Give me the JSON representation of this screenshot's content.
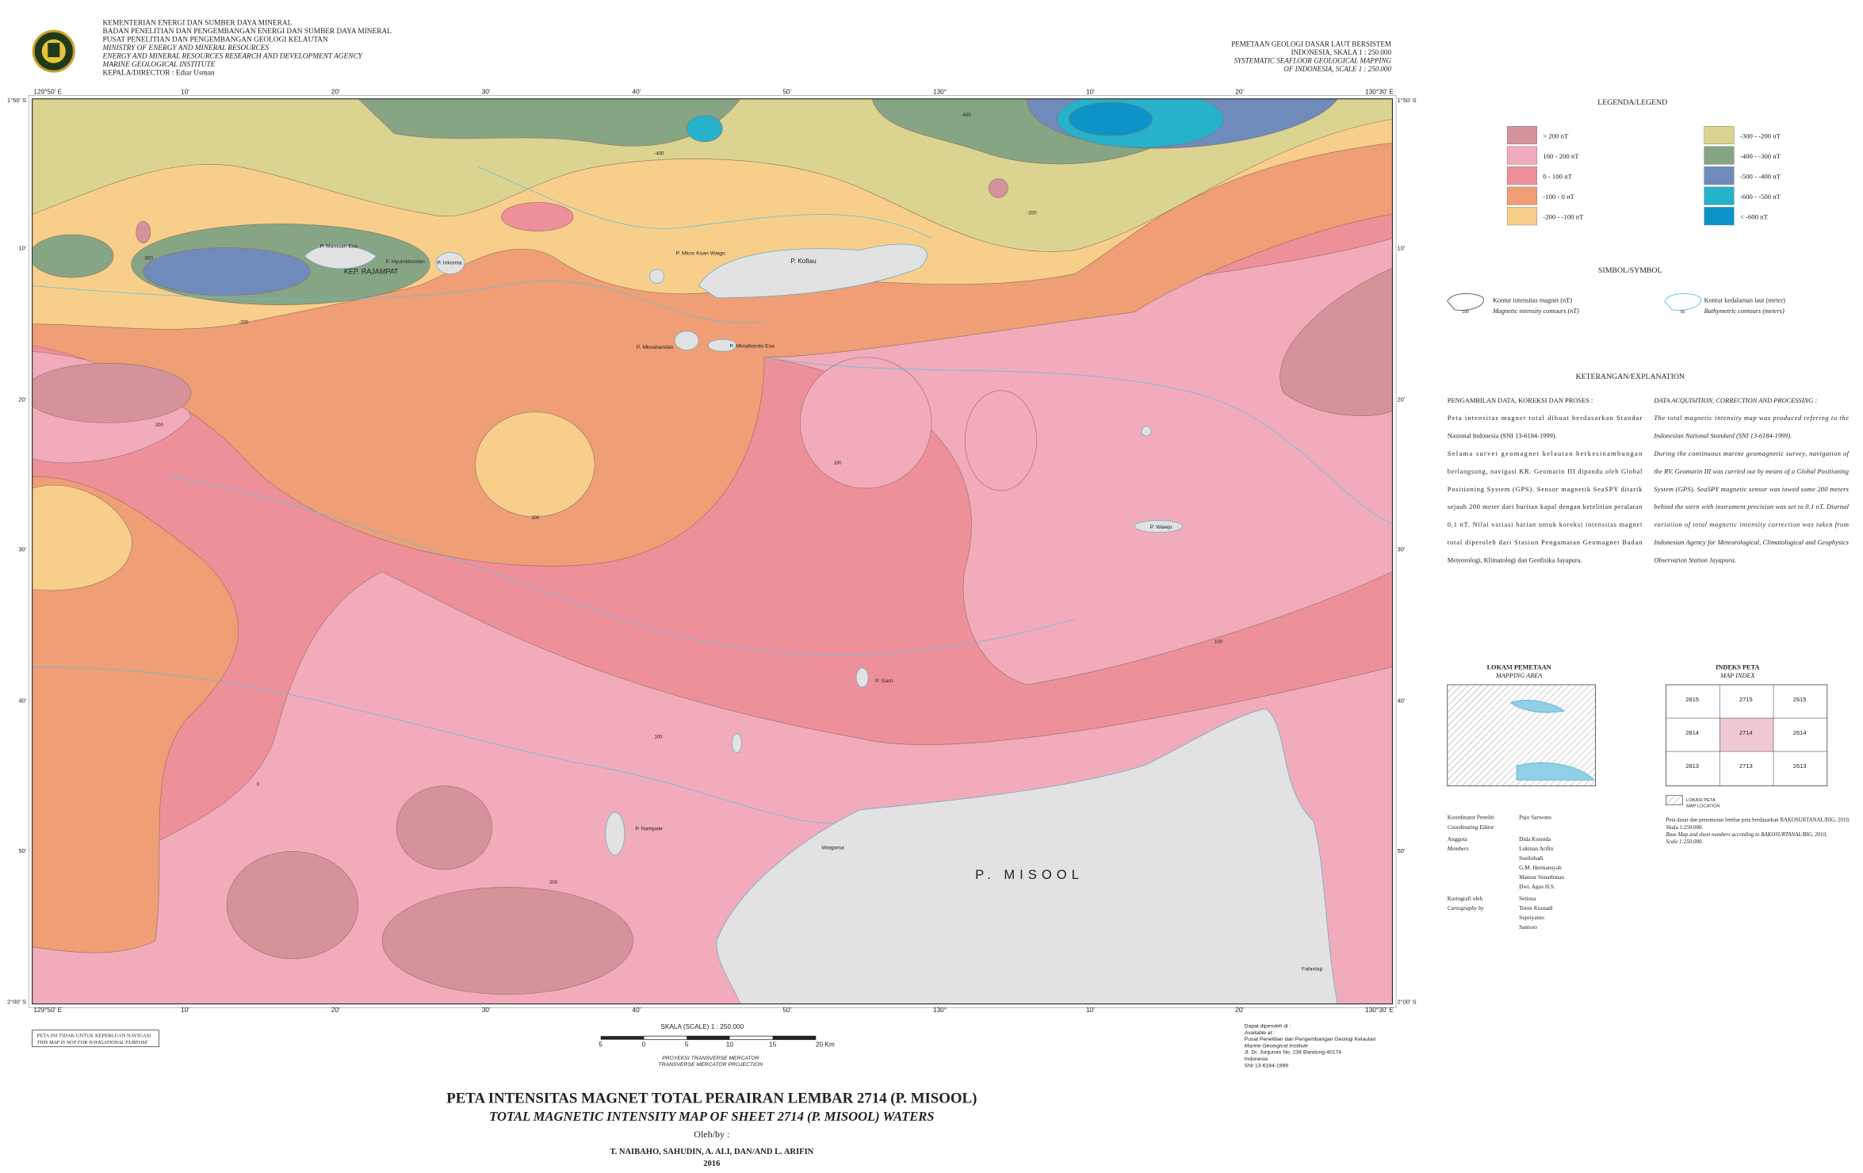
{
  "header": {
    "agency_lines": [
      "KEMENTERIAN ENERGI DAN SUMBER DAYA MINERAL",
      "BADAN PENELITIAN DAN PENGEMBANGAN ENERGI DAN SUMBER DAYA MINERAL",
      "PUSAT PENELITIAN DAN PENGEMBANGAN GEOLOGI KELAUTAN",
      "MINISTRY OF ENERGY AND MINERAL RESOURCES",
      "ENERGY AND MINERAL RESOURCES RESEARCH AND DEVELOPMENT AGENCY",
      "MARINE GEOLOGICAL INSTITUTE",
      "KEPALA/DIRECTOR : Ediar Usman"
    ],
    "series_lines": [
      "PEMETAAN GEOLOGI DASAR LAUT BERSISTEM",
      "INDONESIA, SKALA 1 : 250.000",
      "SYSTEMATIC SEAFLOOR GEOLOGICAL MAPPING",
      "OF INDONESIA, SCALE 1 : 250.000"
    ]
  },
  "map": {
    "lon_labels": [
      "129°50' E",
      "10'",
      "20'",
      "30'",
      "40'",
      "50'",
      "130°",
      "10'",
      "20'",
      "130°30' E"
    ],
    "lat_labels": [
      "1°50' S",
      "10'",
      "20'",
      "30'",
      "40'",
      "50'",
      "2°00' S"
    ],
    "place_labels": [
      "KEP. RAJAMPAT",
      "P. Mamuan Esa",
      "P. Hyumkbombn",
      "P. Inkomia",
      "P. Mkos Koan Waigo",
      "P. Kofiau",
      "P. Mkoabandan",
      "P. Mkoabando Esa",
      "P. Waiejo",
      "P. Gam",
      "P. Nampale",
      "Waigama",
      "P. MISOOL",
      "Fafanlap"
    ],
    "contour_labels": [
      "-200",
      "200",
      "100",
      "100",
      "100",
      "100",
      "200",
      "0",
      "-300",
      "-200",
      "-400",
      "-400"
    ]
  },
  "legend": {
    "title": "LEGENDA/LEGEND",
    "items": [
      {
        "label": "> 200  nT",
        "color": "#d4939b"
      },
      {
        "label": "100 - 200  nT",
        "color": "#f1abbb"
      },
      {
        "label": "0 - 100  nT",
        "color": "#ee909a"
      },
      {
        "label": "-100 - 0  nT",
        "color": "#ef9e75"
      },
      {
        "label": "-200 - -100  nT",
        "color": "#f8cf8a"
      },
      {
        "label": "-300  -  -200 nT",
        "color": "#dbd490"
      },
      {
        "label": "-400 - -300 nT",
        "color": "#86a584"
      },
      {
        "label": "-500 - -400 nT",
        "color": "#6f8bbb"
      },
      {
        "label": "-600 - -500 nT",
        "color": "#25b2ca"
      },
      {
        "label": "< -600 nT",
        "color": "#0c93c8"
      }
    ]
  },
  "symbols": {
    "title": "SIMBOL/SYMBOL",
    "items": [
      {
        "label": "Kontur intensitas magnet (nT)",
        "label_en": "Magnetic intensity contours (nT)",
        "sample": "100"
      },
      {
        "label": "Kontur kedalaman laut (meter)",
        "label_en": "Bathymetric contours (meters)",
        "sample": "50"
      }
    ]
  },
  "explanation": {
    "title": "KETERANGAN/EXPLANATION",
    "id_lines": [
      "PENGAMBILAN DATA, KOREKSI DAN PROSES :",
      "Peta intensitas magnet total  dibuat berdasarkan Standar",
      "Nasional Indonesia (SNI 13-6184-1999).",
      "Selama survei geomagnet kelautan berkesinambungan",
      "berlangsung, navigasi KR. Geomarin III dipandu oleh Global",
      "Positioning System (GPS). Sensor magnetik SeaSPY ditarik",
      "sejauh 200 meter dari buritan kapal dengan ketelitian peralatan",
      "0,1 nT. Nilai variasi harian untuk koreksi intensitas magnet",
      "total diperoleh dari Stasiun Pengamatan Geomagnet Badan",
      "Meteorologi, Klimatologi dan Geofisika Jayapura."
    ],
    "en_lines": [
      "DATA ACQUISITION, CORRECTION AND PROCESSING :",
      "The total magnetic intensity map was produced refering to the",
      "Indonesian National Standard (SNI 13-6184-1999).",
      "During the continuous marine geomagnetic survey, navigation of",
      "the RV. Geomarin III was carried out by means of a Global Positioning",
      "System (GPS). SeaSPY magnetic sensor was towed some 200 meters",
      "behind the stern with instrument precision was set to 0.1 nT. Diurnal",
      "variation of total magnetic intensity correction was taken from",
      "Indonesian Agency for Meteorological, Climatological and Geophysics",
      "Observation Station Jayapura."
    ]
  },
  "mapping_area": {
    "title": "LOKASI PEMETAAN",
    "title_en": "MAPPING AREA"
  },
  "map_index": {
    "title": "INDEKS PETA",
    "title_en": "MAP INDEX",
    "sheets": [
      "2815",
      "2715",
      "2615",
      "2814",
      "2714",
      "2614",
      "2813",
      "2713",
      "2613"
    ],
    "key": "LOKASI PETA",
    "key_en": "MAP LOCATION",
    "note_lines": [
      "Peta dasar dan penomoran lembar peta berdasarkan BAKOSURTANAL/BIG, 2010,",
      "Skala 1:250.000."
    ],
    "note_en_lines": [
      "Base Map and sheet numbers according to BAKOSURTANAL/BIG, 2010,",
      "Scale 1:250.000."
    ]
  },
  "credits": [
    {
      "role": "Koordinator Peneliti",
      "role_en": "Coordinating Editor",
      "names": [
        "Pujo Sarwono"
      ]
    },
    {
      "role": "Anggota",
      "role_en": "Members",
      "names": [
        "Dida Kusnida",
        "Lukman Arifin",
        "Susilohadi",
        "G.M. Hermansyah",
        "Mansur Sunarhman",
        "Dwi. Agus H.S."
      ]
    },
    {
      "role": "Kartografi oleh",
      "role_en": "Cartography by",
      "names": [
        "Setiosa",
        "Toton Kusnadi",
        "Supriyatno",
        "Santoso"
      ]
    }
  ],
  "scale": {
    "label": "SKALA (SCALE)   1 : 250.000",
    "bar_labels": [
      "5",
      "0",
      "5",
      "10",
      "15",
      "20 Km"
    ],
    "projection": "PROYEKSI TRANSVERSE MERCATOR",
    "projection_en": "TRANSVERSE MERCATOR PROJECTION"
  },
  "navigation_note": [
    "PETA INI TIDAK UNTUK KEPERLUAN NAVIGASI",
    "THIS MAP IS NOT FOR NAVIGATIONAL PURPOSE"
  ],
  "availability": [
    "Dapat diperoleh di :",
    "Available at :",
    "Pusat Penelitian dan Pengembangan Geologi Kelautan",
    "Marine Geological Institute",
    "Jl. Dr. Junjunan No. 236 Bandung-40174",
    "Indonesia",
    "SNI 13-6184-1999"
  ],
  "title": {
    "main": "PETA INTENSITAS MAGNET TOTAL  PERAIRAN LEMBAR 2714 (P. MISOOL)",
    "sub": "TOTAL  MAGNETIC INTENSITY  MAP OF SHEET 2714  (P. MISOOL) WATERS",
    "by": "Oleh/by :",
    "authors": "T. NAIBAHO, SAHUDIN, A. ALI, DAN/AND L. ARIFIN",
    "year": "2016"
  }
}
